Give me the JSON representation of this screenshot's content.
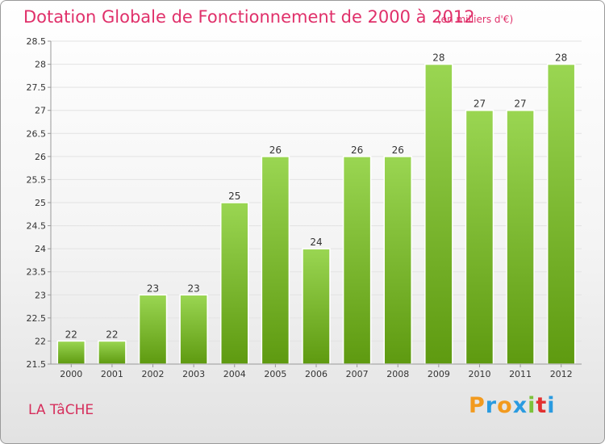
{
  "title": "Dotation Globale de Fonctionnement de 2000 à 2012",
  "subtitle": "(en milliers d'€)",
  "commune": "LA TâCHE",
  "logo": {
    "letters": [
      "P",
      "r",
      "o",
      "x",
      "i",
      "t",
      "i"
    ],
    "colors": [
      "#f29a1e",
      "#2a9be0",
      "#f29a1e",
      "#2a9be0",
      "#7cc23a",
      "#e23030",
      "#2a9be0"
    ]
  },
  "colors": {
    "bar_top": "#9ad652",
    "bar_bottom": "#5e9a10",
    "title": "#e0306a",
    "grid": "#e3e3e3"
  },
  "chart_data": {
    "type": "bar",
    "title": "Dotation Globale de Fonctionnement de 2000 à 2012",
    "subtitle": "(en milliers d'€)",
    "categories": [
      "2000",
      "2001",
      "2002",
      "2003",
      "2004",
      "2005",
      "2006",
      "2007",
      "2008",
      "2009",
      "2010",
      "2011",
      "2012"
    ],
    "values": [
      22,
      22,
      23,
      23,
      25,
      26,
      24,
      26,
      26,
      28,
      27,
      27,
      28
    ],
    "data_labels": [
      "22",
      "22",
      "23",
      "23",
      "25",
      "26",
      "24",
      "26",
      "26",
      "28",
      "27",
      "27",
      "28"
    ],
    "ylim": [
      21.5,
      28.5
    ],
    "yticks": [
      "21.5",
      "22",
      "22.5",
      "23",
      "23.5",
      "24",
      "24.5",
      "25",
      "25.5",
      "26",
      "26.5",
      "27",
      "27.5",
      "28",
      "28.5"
    ],
    "grid": true,
    "legend": "none"
  }
}
